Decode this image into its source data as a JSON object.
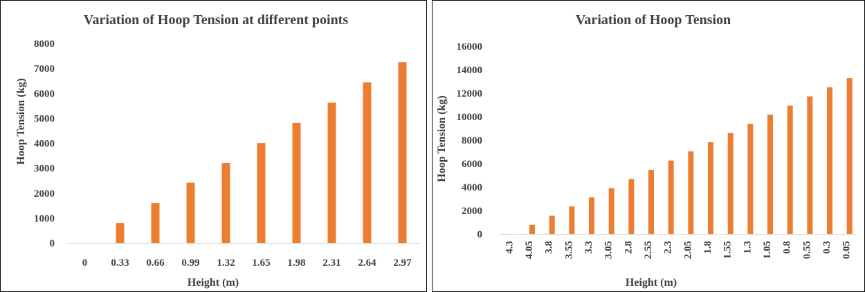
{
  "colors": {
    "bar": "#ED7D31",
    "secondary_bar": "#4472C4",
    "axis": "#D9D9D9",
    "text": "#3F3F3F"
  },
  "chart_data": [
    {
      "type": "bar",
      "title": "Variation of Hoop Tension at different points",
      "xlabel": "Height (m)",
      "ylabel": "Hoop Tension (kg)",
      "ylim": [
        0,
        8000
      ],
      "yticks": [
        "0",
        "1000",
        "2000",
        "3000",
        "4000",
        "5000",
        "6000",
        "7000",
        "8000"
      ],
      "grid": false,
      "legend": "none",
      "categories": [
        "0",
        "0.33",
        "0.66",
        "0.99",
        "1.32",
        "1.65",
        "1.98",
        "2.31",
        "2.64",
        "2.97"
      ],
      "series": [
        {
          "values": [
            0,
            800,
            1600,
            2420,
            3210,
            4010,
            4820,
            5630,
            6440,
            7250
          ]
        }
      ]
    },
    {
      "type": "bar",
      "title": "Variation of Hoop Tension",
      "xlabel": "Height (m)",
      "ylabel": "Hoop Tension (kg)",
      "ylim": [
        0,
        16000
      ],
      "yticks": [
        "0",
        "2000",
        "4000",
        "6000",
        "8000",
        "10000",
        "12000",
        "14000",
        "16000"
      ],
      "grid": false,
      "legend": "none",
      "categories": [
        "4.3",
        "4.05",
        "3.8",
        "3.55",
        "3.3",
        "3.05",
        "2.8",
        "2.55",
        "2.3",
        "2.05",
        "1.8",
        "1.55",
        "1.3",
        "1.05",
        "0.8",
        "0.55",
        "0.3",
        "0.05"
      ],
      "series": [
        {
          "values": [
            4.3,
            4.05,
            3.8,
            3.55,
            3.3,
            3.05,
            2.8,
            2.55,
            2.3,
            2.05,
            1.8,
            1.55,
            1.3,
            1.05,
            0.8,
            0.55,
            0.3,
            0.05
          ]
        },
        {
          "values": [
            0,
            780,
            1560,
            2350,
            3130,
            3910,
            4690,
            5470,
            6260,
            7040,
            7820,
            8600,
            9380,
            10170,
            10950,
            11730,
            12510,
            13290
          ]
        }
      ]
    }
  ]
}
